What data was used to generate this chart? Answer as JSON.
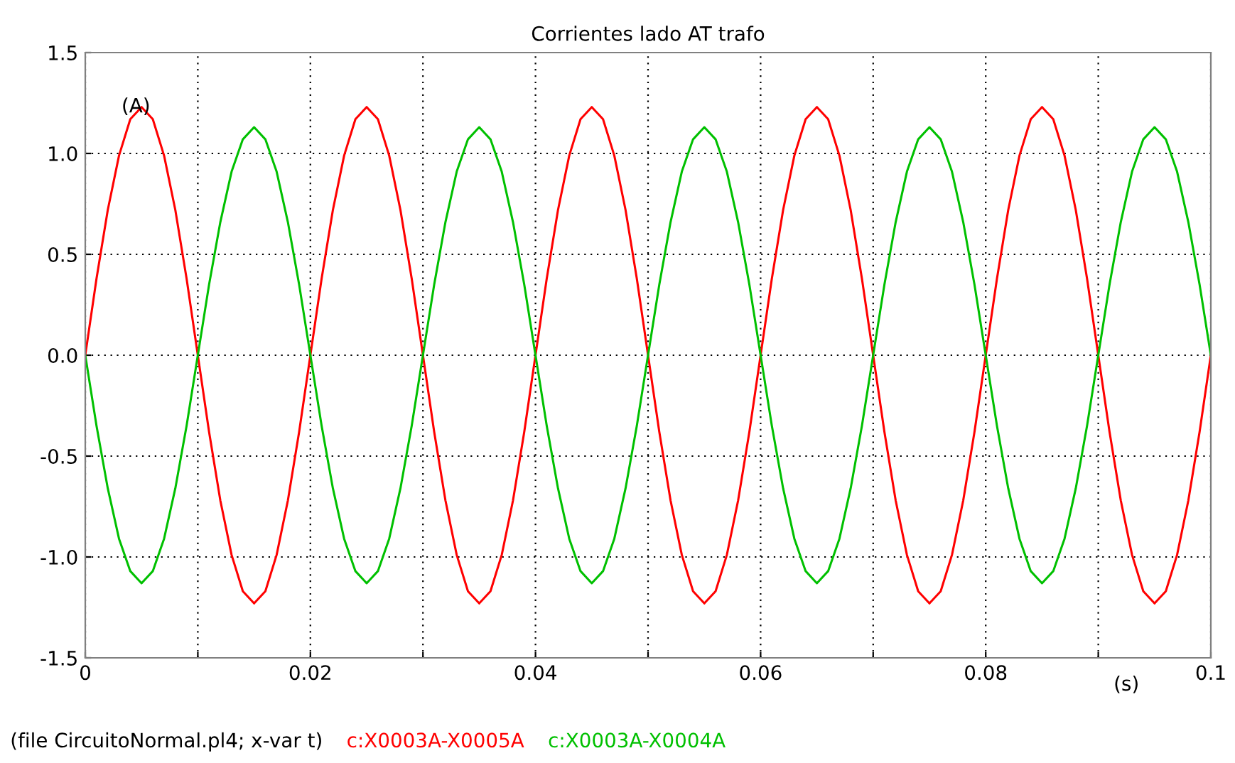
{
  "chart_data": {
    "type": "line",
    "title": "Corrientes lado AT trafo",
    "xlabel": "(s)",
    "ylabel": "(A)",
    "annotations": [
      "(file CircuitoNormal.pl4; x-var t)"
    ],
    "x": [
      0,
      0.001,
      0.002,
      0.003,
      0.004,
      0.005,
      0.006,
      0.007,
      0.008,
      0.009,
      0.01,
      0.011,
      0.012,
      0.013,
      0.014,
      0.015,
      0.016,
      0.017,
      0.018,
      0.019,
      0.02,
      0.021,
      0.022,
      0.023,
      0.024,
      0.025,
      0.026,
      0.027,
      0.028,
      0.029,
      0.03,
      0.031,
      0.032,
      0.033,
      0.034,
      0.035,
      0.036,
      0.037,
      0.038,
      0.039,
      0.04,
      0.041,
      0.042,
      0.043,
      0.044,
      0.045,
      0.046,
      0.047,
      0.048,
      0.049,
      0.05,
      0.051,
      0.052,
      0.053,
      0.054,
      0.055,
      0.056,
      0.057,
      0.058,
      0.059,
      0.06,
      0.061,
      0.062,
      0.063,
      0.064,
      0.065,
      0.066,
      0.067,
      0.068,
      0.069,
      0.07,
      0.071,
      0.072,
      0.073,
      0.074,
      0.075,
      0.076,
      0.077,
      0.078,
      0.079,
      0.08,
      0.081,
      0.082,
      0.083,
      0.084,
      0.085,
      0.086,
      0.087,
      0.088,
      0.089,
      0.09,
      0.091,
      0.092,
      0.093,
      0.094,
      0.095,
      0.096,
      0.097,
      0.098,
      0.099,
      0.1
    ],
    "series": [
      {
        "name": "c:X0003A-X0005A",
        "color": "#ff0000",
        "values": [
          0,
          0.38,
          0.72,
          0.99,
          1.17,
          1.23,
          1.17,
          0.99,
          0.72,
          0.38,
          0,
          -0.38,
          -0.72,
          -0.99,
          -1.17,
          -1.23,
          -1.17,
          -0.99,
          -0.72,
          -0.38,
          0,
          0.38,
          0.72,
          0.99,
          1.17,
          1.23,
          1.17,
          0.99,
          0.72,
          0.38,
          0,
          -0.38,
          -0.72,
          -0.99,
          -1.17,
          -1.23,
          -1.17,
          -0.99,
          -0.72,
          -0.38,
          0,
          0.38,
          0.72,
          0.99,
          1.17,
          1.23,
          1.17,
          0.99,
          0.72,
          0.38,
          0,
          -0.38,
          -0.72,
          -0.99,
          -1.17,
          -1.23,
          -1.17,
          -0.99,
          -0.72,
          -0.38,
          0,
          0.38,
          0.72,
          0.99,
          1.17,
          1.23,
          1.17,
          0.99,
          0.72,
          0.38,
          0,
          -0.38,
          -0.72,
          -0.99,
          -1.17,
          -1.23,
          -1.17,
          -0.99,
          -0.72,
          -0.38,
          0,
          0.38,
          0.72,
          0.99,
          1.17,
          1.23,
          1.17,
          0.99,
          0.72,
          0.38,
          0,
          -0.38,
          -0.72,
          -0.99,
          -1.17,
          -1.23,
          -1.17,
          -0.99,
          -0.72,
          -0.38,
          0
        ]
      },
      {
        "name": "c:X0003A-X0004A",
        "color": "#00c000",
        "values": [
          0,
          -0.35,
          -0.66,
          -0.91,
          -1.07,
          -1.13,
          -1.07,
          -0.91,
          -0.66,
          -0.35,
          0,
          0.35,
          0.66,
          0.91,
          1.07,
          1.13,
          1.07,
          0.91,
          0.66,
          0.35,
          0,
          -0.35,
          -0.66,
          -0.91,
          -1.07,
          -1.13,
          -1.07,
          -0.91,
          -0.66,
          -0.35,
          0,
          0.35,
          0.66,
          0.91,
          1.07,
          1.13,
          1.07,
          0.91,
          0.66,
          0.35,
          0,
          -0.35,
          -0.66,
          -0.91,
          -1.07,
          -1.13,
          -1.07,
          -0.91,
          -0.66,
          -0.35,
          0,
          0.35,
          0.66,
          0.91,
          1.07,
          1.13,
          1.07,
          0.91,
          0.66,
          0.35,
          0,
          -0.35,
          -0.66,
          -0.91,
          -1.07,
          -1.13,
          -1.07,
          -0.91,
          -0.66,
          -0.35,
          0,
          0.35,
          0.66,
          0.91,
          1.07,
          1.13,
          1.07,
          0.91,
          0.66,
          0.35,
          0,
          -0.35,
          -0.66,
          -0.91,
          -1.07,
          -1.13,
          -1.07,
          -0.91,
          -0.66,
          -0.35,
          0,
          0.35,
          0.66,
          0.91,
          1.07,
          1.13,
          1.07,
          0.91,
          0.66,
          0.35,
          0
        ]
      }
    ],
    "xlim": [
      0,
      0.1
    ],
    "ylim": [
      -1.5,
      1.5
    ],
    "xticks": [
      0,
      {
        "value": 0.01,
        "label": null
      },
      {
        "value": 0.02,
        "label": "0.02"
      },
      {
        "value": 0.03,
        "label": null
      },
      {
        "value": 0.04,
        "label": "0.04"
      },
      {
        "value": 0.05,
        "label": null
      },
      {
        "value": 0.06,
        "label": "0.06"
      },
      {
        "value": 0.07,
        "label": null
      },
      {
        "value": 0.08,
        "label": "0.08"
      },
      {
        "value": 0.09,
        "label": null
      },
      {
        "value": 0.1,
        "label": "0.1"
      }
    ],
    "yticks": [
      {
        "value": -1.5,
        "label": "-1.5"
      },
      {
        "value": -1,
        "label": "-1.0"
      },
      {
        "value": -0.5,
        "label": "-0.5"
      },
      {
        "value": 0,
        "label": "0.0"
      },
      {
        "value": 0.5,
        "label": "0.5"
      },
      {
        "value": 1,
        "label": "1.0"
      },
      {
        "value": 1.5,
        "label": "1.5"
      }
    ],
    "grid": true,
    "legend": "bottom",
    "marker": "none",
    "line_style": "solid"
  }
}
